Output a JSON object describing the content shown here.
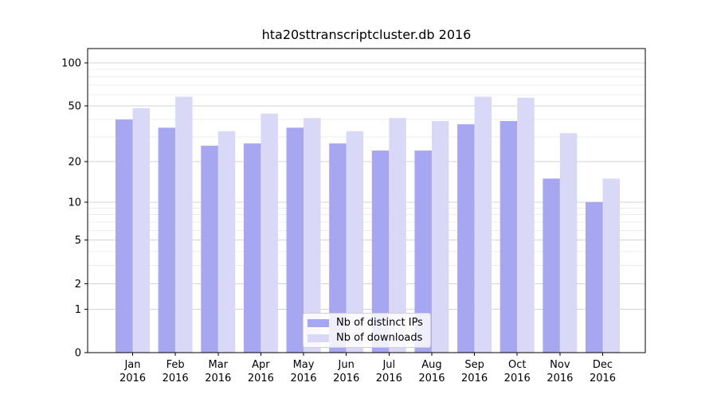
{
  "chart_data": {
    "type": "bar",
    "title": "hta20sttranscriptcluster.db 2016",
    "categories": [
      "Jan",
      "Feb",
      "Mar",
      "Apr",
      "May",
      "Jun",
      "Jul",
      "Aug",
      "Sep",
      "Oct",
      "Nov",
      "Dec"
    ],
    "x_tick_second_line": "2016",
    "series": [
      {
        "name": "Nb of distinct IPs",
        "color": "#a6a6f1",
        "values": [
          40,
          35,
          26,
          27,
          35,
          27,
          24,
          24,
          37,
          39,
          15,
          10
        ]
      },
      {
        "name": "Nb of downloads",
        "color": "#d9d9f7",
        "values": [
          48,
          58,
          33,
          44,
          41,
          33,
          41,
          39,
          58,
          57,
          32,
          15
        ]
      }
    ],
    "yscale": "log10(1+y)",
    "ylim": [
      0,
      115
    ],
    "y_major_ticks": [
      0,
      1,
      2,
      5,
      10,
      20,
      50,
      100
    ],
    "y_minor_ticks": [
      3,
      4,
      6,
      7,
      8,
      9,
      30,
      40,
      60,
      70,
      80,
      90
    ],
    "grid": "on",
    "legend_position": "lower center"
  },
  "styles": {
    "background": "#ffffff",
    "axis_color": "#000000",
    "grid_major_color": "#d4d4d4",
    "grid_minor_color": "#ececec",
    "tick_label_color": "#000000"
  }
}
